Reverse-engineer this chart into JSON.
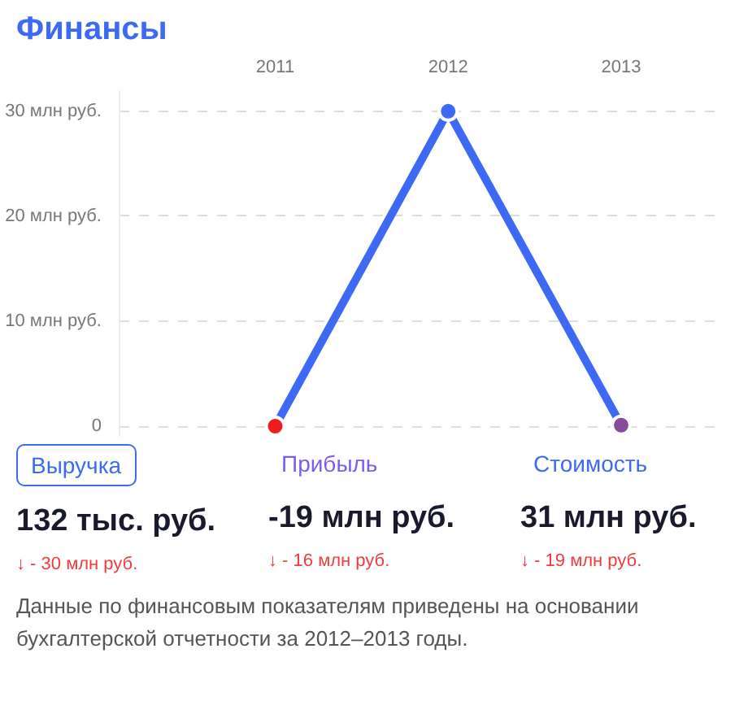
{
  "chart_data": {
    "type": "line",
    "title": "Финансы",
    "categories": [
      "2011",
      "2012",
      "2013"
    ],
    "series": [
      {
        "color": "#3d6af5",
        "colors": [
          "#f01c1c",
          "#3d6af5",
          "#8a4a9c"
        ],
        "values": [
          0,
          30,
          0.1
        ]
      }
    ],
    "ylim": [
      -1,
      32
    ],
    "yticks": [
      {
        "value": 0,
        "label": "0"
      },
      {
        "value": 10,
        "label": "10 млн руб."
      },
      {
        "value": 20,
        "label": "20 млн руб."
      },
      {
        "value": 30,
        "label": "30 млн руб."
      }
    ],
    "grid": "y",
    "marker": "circle",
    "line_style": "solid",
    "annotations": [
      "Выручка",
      "132 тыс. руб.",
      "↓ - 30 млн руб.",
      "Прибыль",
      "-19 млн руб.",
      "↓ - 16 млн руб.",
      "Стоимость",
      "31 млн руб.",
      "↓ - 19 млн руб.",
      "Данные по финансовым показателям приведены на основании бухгалтерской отчетности за 2012–2013 годы."
    ]
  }
}
